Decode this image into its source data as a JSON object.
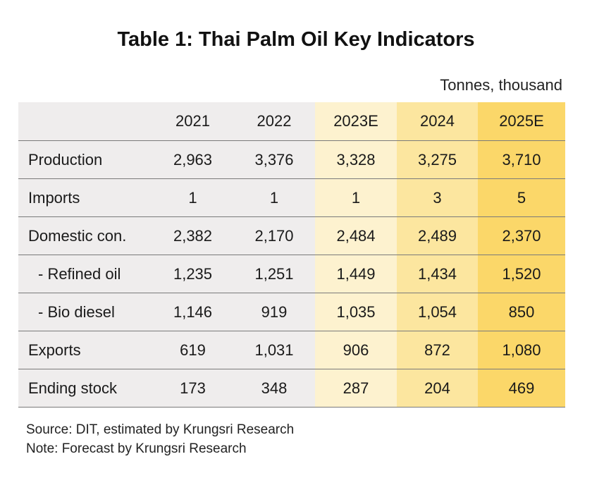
{
  "title": "Table 1: Thai Palm Oil Key Indicators",
  "units": "Tonnes, thousand",
  "colors": {
    "label_bg": "#efeded",
    "col_2021": "#efeded",
    "col_2022": "#efeded",
    "col_2023E": "#fdf2cf",
    "col_2024": "#fce69f",
    "col_2025E": "#fbd769"
  },
  "chart_data": {
    "type": "table",
    "title": "Table 1: Thai Palm Oil Key Indicators",
    "unit": "Tonnes, thousand",
    "columns": [
      "2021",
      "2022",
      "2023E",
      "2024",
      "2025E"
    ],
    "rows": [
      {
        "label": "Production",
        "values": [
          "2,963",
          "3,376",
          "3,328",
          "3,275",
          "3,710"
        ]
      },
      {
        "label": "Imports",
        "values": [
          "1",
          "1",
          "1",
          "3",
          "5"
        ]
      },
      {
        "label": "Domestic con.",
        "values": [
          "2,382",
          "2,170",
          "2,484",
          "2,489",
          "2,370"
        ]
      },
      {
        "label": "- Refined oil",
        "values": [
          "1,235",
          "1,251",
          "1,449",
          "1,434",
          "1,520"
        ]
      },
      {
        "label": "- Bio diesel",
        "values": [
          "1,146",
          "919",
          "1,035",
          "1,054",
          "850"
        ]
      },
      {
        "label": "Exports",
        "values": [
          "619",
          "1,031",
          "906",
          "872",
          "1,080"
        ]
      },
      {
        "label": "Ending stock",
        "values": [
          "173",
          "348",
          "287",
          "204",
          "469"
        ]
      }
    ]
  },
  "footer": {
    "source": "Source: DIT, estimated by Krungsri Research",
    "note": "Note: Forecast by Krungsri Research"
  }
}
